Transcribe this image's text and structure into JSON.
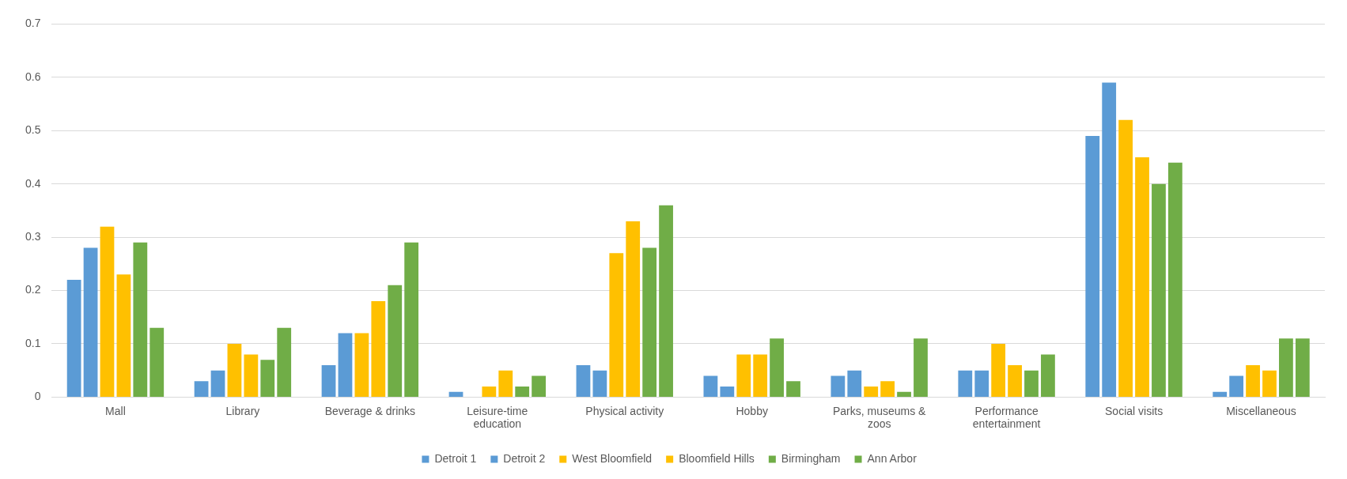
{
  "chart_data": {
    "type": "bar",
    "categories": [
      "Mall",
      "Library",
      "Beverage & drinks",
      "Leisure-time education",
      "Physical activity",
      "Hobby",
      "Parks, museums & zoos",
      "Performance entertainment",
      "Social visits",
      "Miscellaneous"
    ],
    "series": [
      {
        "name": "Detroit 1",
        "color": "#5b9bd5",
        "values": [
          0.22,
          0.03,
          0.06,
          0.01,
          0.06,
          0.04,
          0.04,
          0.05,
          0.49,
          0.01
        ]
      },
      {
        "name": "Detroit 2",
        "color": "#5b9bd5",
        "values": [
          0.28,
          0.05,
          0.12,
          0,
          0.05,
          0.02,
          0.05,
          0.05,
          0.59,
          0.04
        ]
      },
      {
        "name": "West Bloomfield",
        "color": "#ffc000",
        "values": [
          0.32,
          0.1,
          0.12,
          0.02,
          0.27,
          0.08,
          0.02,
          0.1,
          0.52,
          0.06
        ]
      },
      {
        "name": "Bloomfield Hills",
        "color": "#ffc000",
        "values": [
          0.23,
          0.08,
          0.18,
          0.05,
          0.33,
          0.08,
          0.03,
          0.06,
          0.45,
          0.05
        ]
      },
      {
        "name": "Birmingham",
        "color": "#70ad47",
        "values": [
          0.29,
          0.07,
          0.21,
          0.02,
          0.28,
          0.11,
          0.01,
          0.05,
          0.4,
          0.11
        ]
      },
      {
        "name": "Ann Arbor",
        "color": "#70ad47",
        "values": [
          0.13,
          0.13,
          0.29,
          0.04,
          0.36,
          0.03,
          0.11,
          0.08,
          0.44,
          0.11
        ]
      }
    ],
    "ylim": [
      0,
      0.7
    ],
    "yticks": [
      0,
      0.1,
      0.2,
      0.3,
      0.4,
      0.5,
      0.6,
      0.7
    ],
    "grid": "y",
    "legend": "bottom"
  }
}
